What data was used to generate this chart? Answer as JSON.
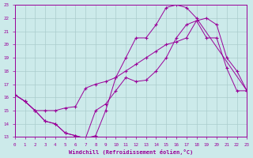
{
  "xlabel": "Windchill (Refroidissement éolien,°C)",
  "bg_color": "#cceaea",
  "grid_color": "#aacccc",
  "line_color": "#990099",
  "xlim": [
    0,
    23
  ],
  "ylim": [
    13,
    23
  ],
  "xticks": [
    0,
    1,
    2,
    3,
    4,
    5,
    6,
    7,
    8,
    9,
    10,
    11,
    12,
    13,
    14,
    15,
    16,
    17,
    18,
    19,
    20,
    21,
    22,
    23
  ],
  "yticks": [
    13,
    14,
    15,
    16,
    17,
    18,
    19,
    20,
    21,
    22,
    23
  ],
  "line1_x": [
    0,
    1,
    2,
    3,
    4,
    5,
    6,
    7,
    8,
    9,
    10,
    11,
    12,
    13,
    14,
    15,
    16,
    17,
    18,
    23
  ],
  "line1_y": [
    16.2,
    15.7,
    15.0,
    14.2,
    14.0,
    13.3,
    13.1,
    12.9,
    13.1,
    15.0,
    17.5,
    19.0,
    20.5,
    20.5,
    21.5,
    22.8,
    23.0,
    22.8,
    22.0,
    16.5
  ],
  "line2_x": [
    0,
    1,
    2,
    3,
    4,
    5,
    6,
    7,
    8,
    9,
    10,
    11,
    12,
    13,
    14,
    15,
    16,
    17,
    18,
    19,
    20,
    21,
    22,
    23
  ],
  "line2_y": [
    16.2,
    15.7,
    15.0,
    15.0,
    15.0,
    15.2,
    15.3,
    16.7,
    17.0,
    17.2,
    17.5,
    18.0,
    18.5,
    19.0,
    19.5,
    20.0,
    20.2,
    20.5,
    21.8,
    22.0,
    21.5,
    19.0,
    18.0,
    16.5
  ],
  "line3_x": [
    0,
    1,
    2,
    3,
    4,
    5,
    6,
    7,
    8,
    9,
    10,
    11,
    12,
    13,
    14,
    15,
    16,
    17,
    18,
    19,
    20,
    21,
    22,
    23
  ],
  "line3_y": [
    16.2,
    15.7,
    15.0,
    14.2,
    14.0,
    13.3,
    13.1,
    12.9,
    15.0,
    15.5,
    16.5,
    17.5,
    17.2,
    17.3,
    18.0,
    19.0,
    20.5,
    21.5,
    21.8,
    20.5,
    20.5,
    18.2,
    16.5,
    16.5
  ]
}
